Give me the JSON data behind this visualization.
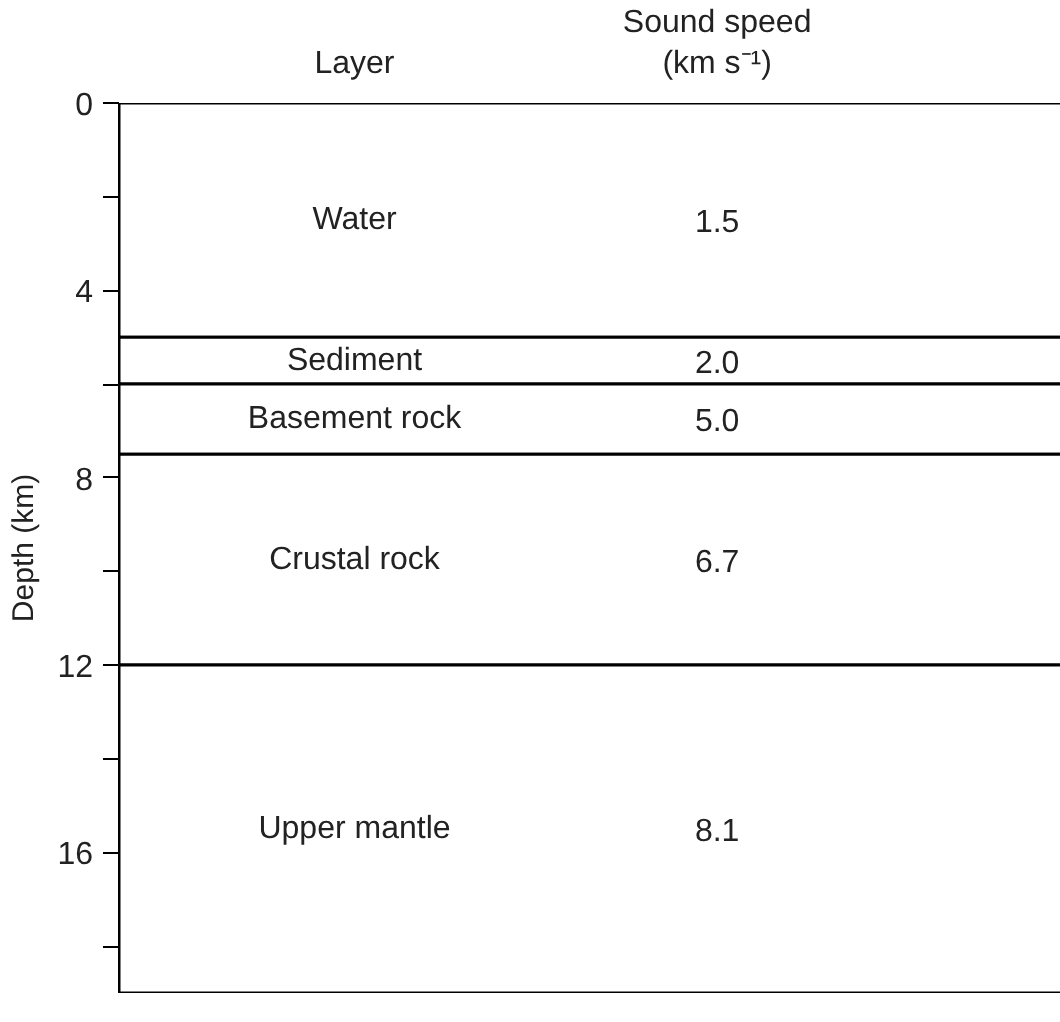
{
  "chart_data": {
    "type": "bar",
    "stacked": true,
    "categories": [
      null
    ],
    "ylabel": "Depth (km)",
    "ylim": [
      19,
      0
    ],
    "yticks": [
      0,
      {
        "value": 2,
        "label": null
      },
      4,
      {
        "value": 6,
        "label": null
      },
      8,
      {
        "value": 10,
        "label": null
      },
      12,
      {
        "value": 14,
        "label": null
      },
      16,
      {
        "value": 18,
        "label": null
      }
    ],
    "tick_labels": "y",
    "series": [
      {
        "name": "Water",
        "color": "#ffffff",
        "values": [
          5.0
        ]
      },
      {
        "name": "Sediment",
        "color": "#ffffff",
        "values": [
          1.0
        ]
      },
      {
        "name": "Basement rock",
        "color": "#ffffff",
        "values": [
          1.5
        ]
      },
      {
        "name": "Crustal rock",
        "color": "#ffffff",
        "values": [
          4.5
        ]
      },
      {
        "name": "Upper mantle",
        "color": "#ffffff",
        "values": [
          7.0
        ]
      }
    ],
    "annotations": [
      "Layer",
      "Sound speed\n(km s⁻¹)",
      "1.5",
      "2.0",
      "5.0",
      "6.7",
      "8.1"
    ]
  }
}
